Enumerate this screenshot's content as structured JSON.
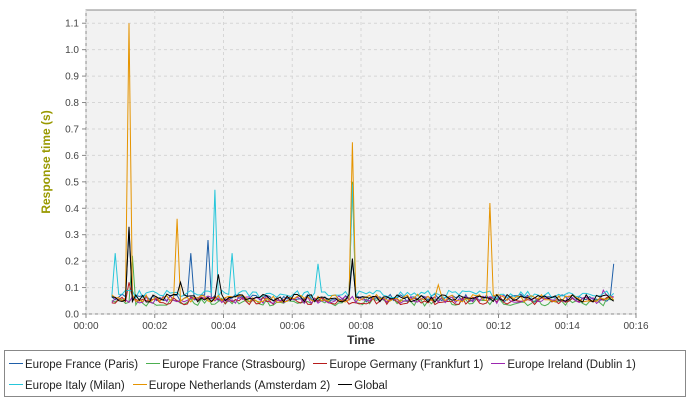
{
  "chart_data": {
    "type": "line",
    "title": "",
    "xlabel": "Time",
    "ylabel": "Response time (s)",
    "ylabel_color": "#999900",
    "xlim": [
      0,
      16
    ],
    "ylim": [
      0,
      1.15
    ],
    "grid": true,
    "legend_position": "bottom",
    "x_ticks": [
      "00:00",
      "00:02",
      "00:04",
      "00:06",
      "00:08",
      "00:10",
      "00:12",
      "00:14",
      "00:16"
    ],
    "y_ticks": [
      "0.0",
      "0.1",
      "0.2",
      "0.3",
      "0.4",
      "0.5",
      "0.6",
      "0.7",
      "0.8",
      "0.9",
      "1.0",
      "1.1"
    ],
    "series": [
      {
        "name": "Europe France (Paris)",
        "color": "#1f5fa8",
        "base": 0.06,
        "spikes": [
          [
            1.3,
            0.32
          ],
          [
            3.1,
            0.23
          ],
          [
            3.6,
            0.28
          ],
          [
            7.7,
            0.2
          ],
          [
            15.3,
            0.19
          ]
        ]
      },
      {
        "name": "Europe France (Strasbourg)",
        "color": "#4caf50",
        "base": 0.045,
        "spikes": [
          [
            1.35,
            0.22
          ],
          [
            7.7,
            0.5
          ]
        ]
      },
      {
        "name": "Europe Germany (Frankfurt 1)",
        "color": "#b71c1c",
        "base": 0.05,
        "spikes": [
          [
            1.3,
            0.12
          ]
        ]
      },
      {
        "name": "Europe Ireland (Dublin 1)",
        "color": "#9c27b0",
        "base": 0.055,
        "spikes": [
          [
            15.0,
            0.09
          ]
        ]
      },
      {
        "name": "Europe Italy (Milan)",
        "color": "#26c6da",
        "base": 0.075,
        "spikes": [
          [
            0.8,
            0.23
          ],
          [
            3.8,
            0.47
          ],
          [
            4.3,
            0.23
          ],
          [
            6.7,
            0.19
          ],
          [
            7.7,
            0.49
          ]
        ]
      },
      {
        "name": "Europe Netherlands (Amsterdam 2)",
        "color": "#e59400",
        "base": 0.06,
        "spikes": [
          [
            1.25,
            1.1
          ],
          [
            2.7,
            0.36
          ],
          [
            7.7,
            0.65
          ],
          [
            10.2,
            0.11
          ],
          [
            11.7,
            0.42
          ]
        ]
      },
      {
        "name": "Global",
        "color": "#000000",
        "base": 0.06,
        "spikes": [
          [
            1.3,
            0.33
          ],
          [
            2.8,
            0.12
          ],
          [
            3.9,
            0.15
          ],
          [
            7.7,
            0.21
          ]
        ]
      }
    ],
    "x_start": 0.75,
    "x_end": 15.4
  }
}
